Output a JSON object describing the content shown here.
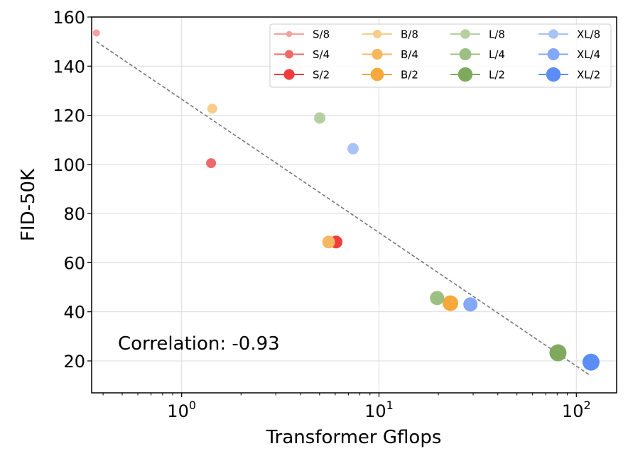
{
  "chart_data": {
    "type": "scatter",
    "title": "",
    "xlabel": "Transformer Gflops",
    "ylabel": "FID-50K",
    "x_scale": "log",
    "xlim": [
      0.35,
      160
    ],
    "ylim": [
      7,
      160
    ],
    "y_ticks": [
      20,
      40,
      60,
      80,
      100,
      120,
      140,
      160
    ],
    "x_tick_labels": [
      {
        "value": 1,
        "base": "10",
        "exp": "0"
      },
      {
        "value": 10,
        "base": "10",
        "exp": "1"
      },
      {
        "value": 100,
        "base": "10",
        "exp": "2"
      }
    ],
    "grid": true,
    "legend_position": "top-right",
    "legend_columns": 4,
    "annotation": "Correlation: -0.93",
    "trend_line": {
      "x": [
        0.37,
        118
      ],
      "y": [
        150,
        14
      ]
    },
    "series": [
      {
        "name": "S/8",
        "color": "#f7a0a0",
        "size": 5,
        "x": [
          0.37
        ],
        "y": [
          153.5
        ]
      },
      {
        "name": "S/4",
        "color": "#f06868",
        "size": 7,
        "x": [
          1.41
        ],
        "y": [
          100.5
        ]
      },
      {
        "name": "S/2",
        "color": "#f03c3c",
        "size": 9,
        "x": [
          6.06
        ],
        "y": [
          68.4
        ]
      },
      {
        "name": "B/8",
        "color": "#f8cc8a",
        "size": 7,
        "x": [
          1.43
        ],
        "y": [
          122.7
        ]
      },
      {
        "name": "B/4",
        "color": "#f5b860",
        "size": 9,
        "x": [
          5.56
        ],
        "y": [
          68.4
        ]
      },
      {
        "name": "B/2",
        "color": "#f5a93a",
        "size": 11,
        "x": [
          23.01
        ],
        "y": [
          43.5
        ]
      },
      {
        "name": "L/8",
        "color": "#b5cfa1",
        "size": 8,
        "x": [
          5.01
        ],
        "y": [
          118.9
        ]
      },
      {
        "name": "L/4",
        "color": "#9cbf84",
        "size": 10,
        "x": [
          19.7
        ],
        "y": [
          45.6
        ]
      },
      {
        "name": "L/2",
        "color": "#7faa5e",
        "size": 12,
        "x": [
          80.71
        ],
        "y": [
          23.3
        ]
      },
      {
        "name": "XL/8",
        "color": "#a8c3f7",
        "size": 8,
        "x": [
          7.39
        ],
        "y": [
          106.4
        ]
      },
      {
        "name": "XL/4",
        "color": "#82a8f7",
        "size": 10,
        "x": [
          29.05
        ],
        "y": [
          43.0
        ]
      },
      {
        "name": "XL/2",
        "color": "#5b8df7",
        "size": 12,
        "x": [
          118.64
        ],
        "y": [
          19.5
        ]
      }
    ]
  }
}
